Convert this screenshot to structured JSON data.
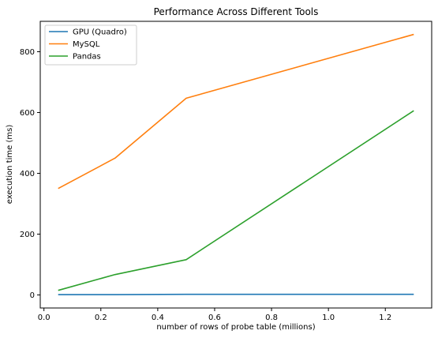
{
  "chart_data": {
    "type": "line",
    "title": "Performance Across Different Tools",
    "xlabel": "number of rows of probe table (millions)",
    "ylabel": "execution time (ms)",
    "x": [
      0.05,
      0.25,
      0.5,
      1.3
    ],
    "xlim": [
      -0.013,
      1.363
    ],
    "ylim": [
      -43,
      900
    ],
    "xticks": [
      0.0,
      0.2,
      0.4,
      0.6,
      0.8,
      1.0,
      1.2
    ],
    "xtick_labels": [
      "0.0",
      "0.2",
      "0.4",
      "0.6",
      "0.8",
      "1.0",
      "1.2"
    ],
    "yticks": [
      0,
      200,
      400,
      600,
      800
    ],
    "ytick_labels": [
      "0",
      "200",
      "400",
      "600",
      "800"
    ],
    "grid": false,
    "legend_position": "top-left",
    "series": [
      {
        "name": "GPU (Quadro)",
        "color": "#1f77b4",
        "values": [
          1,
          1,
          2,
          2
        ]
      },
      {
        "name": "MySQL",
        "color": "#ff7f0e",
        "values": [
          350,
          450,
          647,
          857
        ]
      },
      {
        "name": "Pandas",
        "color": "#2ca02c",
        "values": [
          15,
          67,
          116,
          606
        ]
      }
    ]
  }
}
